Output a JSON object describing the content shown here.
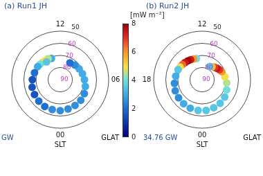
{
  "chart_data": [
    {
      "type": "polar_heatmap",
      "title": "(a) Run1 JH",
      "rlim": [
        50,
        90
      ],
      "rticks": [
        50,
        60,
        70,
        80,
        90
      ],
      "angular_ticks": [
        {
          "value": 12,
          "label": "12"
        },
        {
          "value": 6,
          "label": "06"
        },
        {
          "value": 0,
          "label": "00"
        }
      ],
      "radial_label": "GLAT",
      "angular_label": "SLT",
      "annotation": "GW",
      "cells": [
        {
          "slt": 13.5,
          "glat": 71,
          "value": 3
        },
        {
          "slt": 14,
          "glat": 70,
          "value": 4.5
        },
        {
          "slt": 14.5,
          "glat": 70,
          "value": 5
        },
        {
          "slt": 15,
          "glat": 69.5,
          "value": 5
        },
        {
          "slt": 15.5,
          "glat": 69,
          "value": 4
        },
        {
          "slt": 14.5,
          "glat": 71.5,
          "value": 3.5
        },
        {
          "slt": 16,
          "glat": 68.5,
          "value": 3
        },
        {
          "slt": 17,
          "glat": 68,
          "value": 2
        },
        {
          "slt": 18,
          "glat": 67,
          "value": 1.5
        },
        {
          "slt": 19,
          "glat": 66,
          "value": 1.5
        },
        {
          "slt": 20,
          "glat": 65.5,
          "value": 1.5
        },
        {
          "slt": 21,
          "glat": 65,
          "value": 2
        },
        {
          "slt": 22,
          "glat": 64.5,
          "value": 2
        },
        {
          "slt": 23,
          "glat": 64.5,
          "value": 2.5
        },
        {
          "slt": 0,
          "glat": 64.5,
          "value": 2.5
        },
        {
          "slt": 1,
          "glat": 65,
          "value": 2.5
        },
        {
          "slt": 2,
          "glat": 65.5,
          "value": 2.5
        },
        {
          "slt": 3,
          "glat": 66,
          "value": 2.5
        },
        {
          "slt": 4,
          "glat": 67,
          "value": 2.5
        },
        {
          "slt": 5,
          "glat": 68.5,
          "value": 3
        },
        {
          "slt": 6,
          "glat": 70,
          "value": 3
        },
        {
          "slt": 7,
          "glat": 71,
          "value": 3
        },
        {
          "slt": 8,
          "glat": 72,
          "value": 3
        },
        {
          "slt": 9,
          "glat": 73,
          "value": 2.5
        },
        {
          "slt": 10,
          "glat": 74,
          "value": 2
        }
      ]
    },
    {
      "type": "polar_heatmap",
      "title": "(b) Run2 JH",
      "rlim": [
        50,
        90
      ],
      "rticks": [
        50,
        60,
        70,
        80,
        90
      ],
      "angular_ticks": [
        {
          "value": 12,
          "label": "12"
        },
        {
          "value": 18,
          "label": "18"
        },
        {
          "value": 0,
          "label": "00"
        }
      ],
      "radial_label": "GLAT",
      "angular_label": "SLT",
      "annotation": "34.76 GW",
      "cells": [
        {
          "slt": 13,
          "glat": 72,
          "value": 4
        },
        {
          "slt": 13.5,
          "glat": 71.5,
          "value": 6
        },
        {
          "slt": 14,
          "glat": 71,
          "value": 7.5
        },
        {
          "slt": 14.5,
          "glat": 70.5,
          "value": 8
        },
        {
          "slt": 15,
          "glat": 70,
          "value": 7.5
        },
        {
          "slt": 15.5,
          "glat": 69.5,
          "value": 6.5
        },
        {
          "slt": 16,
          "glat": 69,
          "value": 5
        },
        {
          "slt": 16.5,
          "glat": 68.5,
          "value": 3.5
        },
        {
          "slt": 17.5,
          "glat": 68,
          "value": 3
        },
        {
          "slt": 18.5,
          "glat": 67,
          "value": 2.5
        },
        {
          "slt": 19.5,
          "glat": 66,
          "value": 2.5
        },
        {
          "slt": 20.5,
          "glat": 65.5,
          "value": 2.5
        },
        {
          "slt": 21.5,
          "glat": 65,
          "value": 3
        },
        {
          "slt": 22.5,
          "glat": 64.5,
          "value": 3
        },
        {
          "slt": 23.5,
          "glat": 64.5,
          "value": 3.5
        },
        {
          "slt": 0.5,
          "glat": 64.5,
          "value": 3.5
        },
        {
          "slt": 1.5,
          "glat": 65,
          "value": 3.5
        },
        {
          "slt": 2.5,
          "glat": 65.5,
          "value": 3.5
        },
        {
          "slt": 3.5,
          "glat": 66.5,
          "value": 3.5
        },
        {
          "slt": 4.5,
          "glat": 68,
          "value": 4
        },
        {
          "slt": 5.5,
          "glat": 69.5,
          "value": 4.5
        },
        {
          "slt": 6.5,
          "glat": 71,
          "value": 5
        },
        {
          "slt": 7.5,
          "glat": 72.5,
          "value": 6
        },
        {
          "slt": 8,
          "glat": 73.5,
          "value": 7
        },
        {
          "slt": 8.5,
          "glat": 74.5,
          "value": 7.5
        },
        {
          "slt": 9,
          "glat": 75.5,
          "value": 7
        },
        {
          "slt": 9.5,
          "glat": 76.5,
          "value": 5.5
        },
        {
          "slt": 10,
          "glat": 77.5,
          "value": 3.5
        }
      ]
    }
  ],
  "colorbar": {
    "label": "[mW m⁻²]",
    "range": [
      0,
      8
    ],
    "ticks": [
      0,
      2,
      4,
      6,
      8
    ]
  }
}
